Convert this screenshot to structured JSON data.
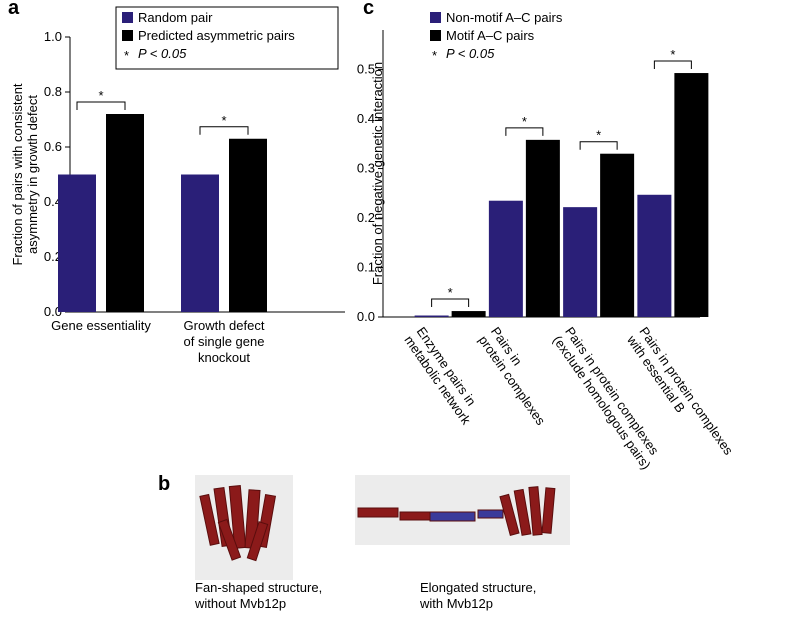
{
  "chart_data": [
    {
      "type": "bar",
      "panel": "a",
      "ylabel": [
        "Fraction of pairs with consistent",
        "asymmetry in growth defect"
      ],
      "categories": [
        [
          "Gene essentiality"
        ],
        [
          "Growth defect",
          "of single gene",
          "knockout"
        ]
      ],
      "series": [
        {
          "name": "Random pair",
          "color": "#2a1f78",
          "values": [
            0.5,
            0.5
          ]
        },
        {
          "name": "Predicted asymmetric pairs",
          "color": "#000000",
          "values": [
            0.72,
            0.63
          ]
        }
      ],
      "ylim": [
        0,
        1
      ],
      "yticks": [
        {
          "value": 0,
          "label": "0.0"
        },
        0.2,
        0.4,
        0.6,
        0.8,
        {
          "value": 1,
          "label": "1.0"
        }
      ],
      "legend": "upper left",
      "legend_frame": true,
      "sig_label": "*",
      "sig_note": "P < 0.05",
      "label_rotation": 0
    },
    {
      "type": "bar",
      "panel": "c",
      "ylabel": [
        "Fraction of negative genetic interaction"
      ],
      "categories": [
        [
          "Enzyme pairs in",
          "metabolic network"
        ],
        [
          "Pairs in",
          "protein complexes"
        ],
        [
          "Pairs in protein complexes",
          "(exclude homologous pairs)"
        ],
        [
          "Pairs in protein complexes",
          "with essential B"
        ]
      ],
      "series": [
        {
          "name": "Non-motif A–C pairs",
          "color": "#2a1f78",
          "values": [
            0.003,
            0.235,
            0.222,
            0.247
          ]
        },
        {
          "name": "Motif A–C pairs",
          "color": "#000000",
          "values": [
            0.012,
            0.358,
            0.33,
            0.493
          ]
        }
      ],
      "ylim": [
        0,
        0.58
      ],
      "yticks": [
        {
          "value": 0,
          "label": "0.0"
        },
        0.1,
        0.2,
        0.3,
        0.4,
        0.5
      ],
      "legend": "upper left",
      "legend_frame": false,
      "sig_label": "*",
      "sig_note": "P < 0.05",
      "label_rotation": 55
    }
  ],
  "panel_b": {
    "label": "b",
    "captions": [
      [
        "Fan-shaped structure,",
        "without Mvb12p"
      ],
      [
        "Elongated structure,",
        "with Mvb12p"
      ]
    ]
  }
}
